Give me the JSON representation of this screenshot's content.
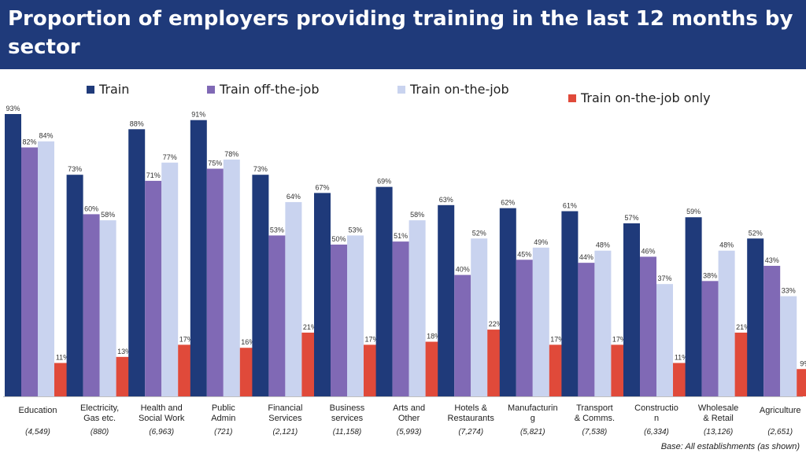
{
  "header": {
    "title": "Proportion of employers providing training in the last 12 months by sector"
  },
  "base_note": "Base: All establishments (as shown)",
  "colors": {
    "header_bg": "#1f3a7a",
    "train": "#1f3a7a",
    "off_job": "#8069b5",
    "on_job": "#c9d3ef",
    "on_job_only": "#e04a3a"
  },
  "chart_data": {
    "type": "bar",
    "title": "Proportion of employers providing training in the last 12 months by sector",
    "ylim": [
      0,
      100
    ],
    "grid": false,
    "legend_position": "top",
    "categories": [
      [
        "Education"
      ],
      [
        "Electricity,",
        "Gas etc."
      ],
      [
        "Health and",
        "Social Work"
      ],
      [
        "Public",
        "Admin"
      ],
      [
        "Financial",
        "Services"
      ],
      [
        "Business",
        "services"
      ],
      [
        "Arts and",
        "Other"
      ],
      [
        "Hotels &",
        "Restaurants"
      ],
      [
        "Manufacturin",
        "g"
      ],
      [
        "Transport",
        "& Comms."
      ],
      [
        "Constructio",
        "n"
      ],
      [
        "Wholesale",
        "& Retail"
      ],
      [
        "Agriculture"
      ]
    ],
    "bases": [
      "(4,549)",
      "(880)",
      "(6,963)",
      "(721)",
      "(2,121)",
      "(11,158)",
      "(5,993)",
      "(7,274)",
      "(5,821)",
      "(7,538)",
      "(6,334)",
      "(13,126)",
      "(2,651)"
    ],
    "series": [
      {
        "name": "Train",
        "color": "#1f3a7a",
        "values": [
          93,
          73,
          88,
          91,
          73,
          67,
          69,
          63,
          62,
          61,
          57,
          59,
          52
        ]
      },
      {
        "name": "Train off-the-job",
        "color": "#8069b5",
        "values": [
          82,
          60,
          71,
          75,
          53,
          50,
          51,
          40,
          45,
          44,
          46,
          38,
          43
        ]
      },
      {
        "name": "Train on-the-job",
        "color": "#c9d3ef",
        "values": [
          84,
          58,
          77,
          78,
          64,
          53,
          58,
          52,
          49,
          48,
          37,
          48,
          33
        ]
      },
      {
        "name": "Train on-the-job only",
        "color": "#e04a3a",
        "values": [
          11,
          13,
          17,
          16,
          21,
          17,
          18,
          22,
          17,
          17,
          11,
          21,
          9
        ]
      }
    ],
    "value_suffix": "%"
  }
}
